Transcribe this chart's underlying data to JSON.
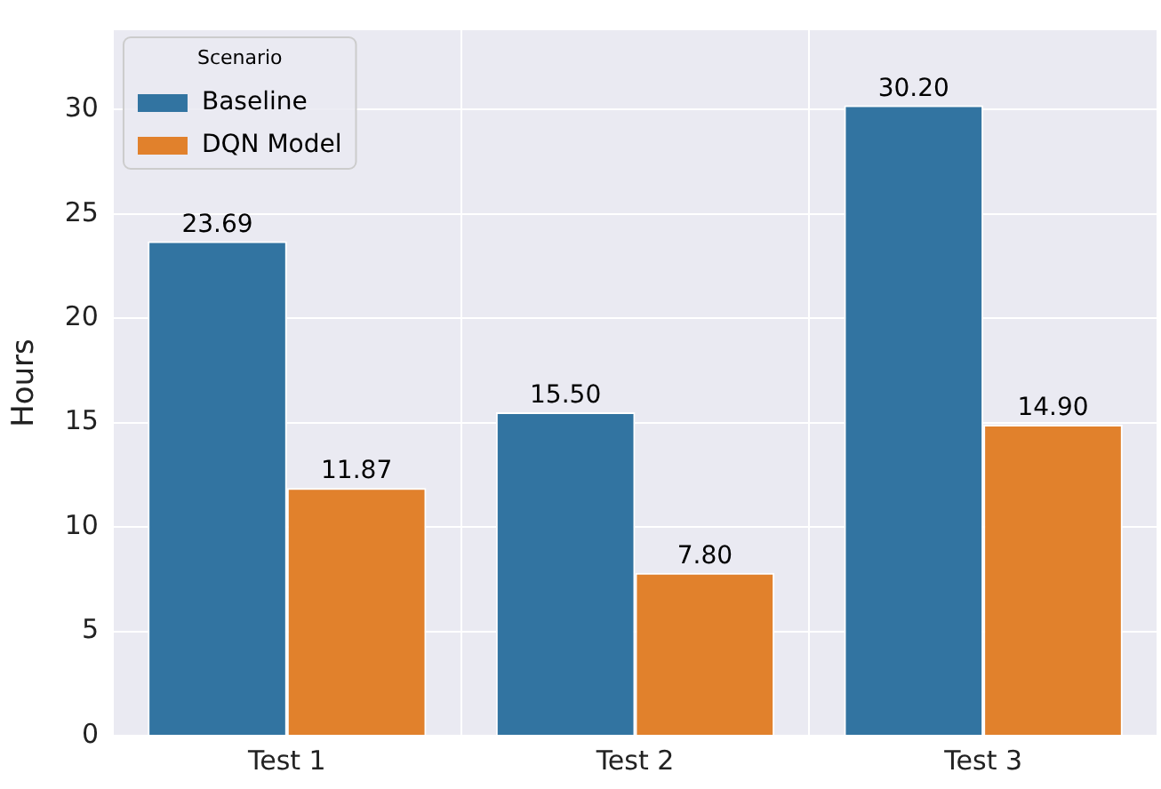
{
  "chart_data": {
    "type": "bar",
    "ylabel": "Hours",
    "legend_title": "Scenario",
    "categories": [
      "Test 1",
      "Test 2",
      "Test 3"
    ],
    "series": [
      {
        "name": "Baseline",
        "color": "#3274a1",
        "values": [
          23.69,
          15.5,
          30.2
        ],
        "value_labels": [
          "23.69",
          "15.50",
          "30.20"
        ]
      },
      {
        "name": "DQN Model",
        "color": "#e1812c",
        "values": [
          11.87,
          7.8,
          14.9
        ],
        "value_labels": [
          "11.87",
          "7.80",
          "14.90"
        ]
      }
    ],
    "ylim": [
      0,
      33.8
    ],
    "yticks": [
      0,
      5,
      10,
      15,
      20,
      25,
      30
    ],
    "grid": true,
    "legend": "top left"
  }
}
